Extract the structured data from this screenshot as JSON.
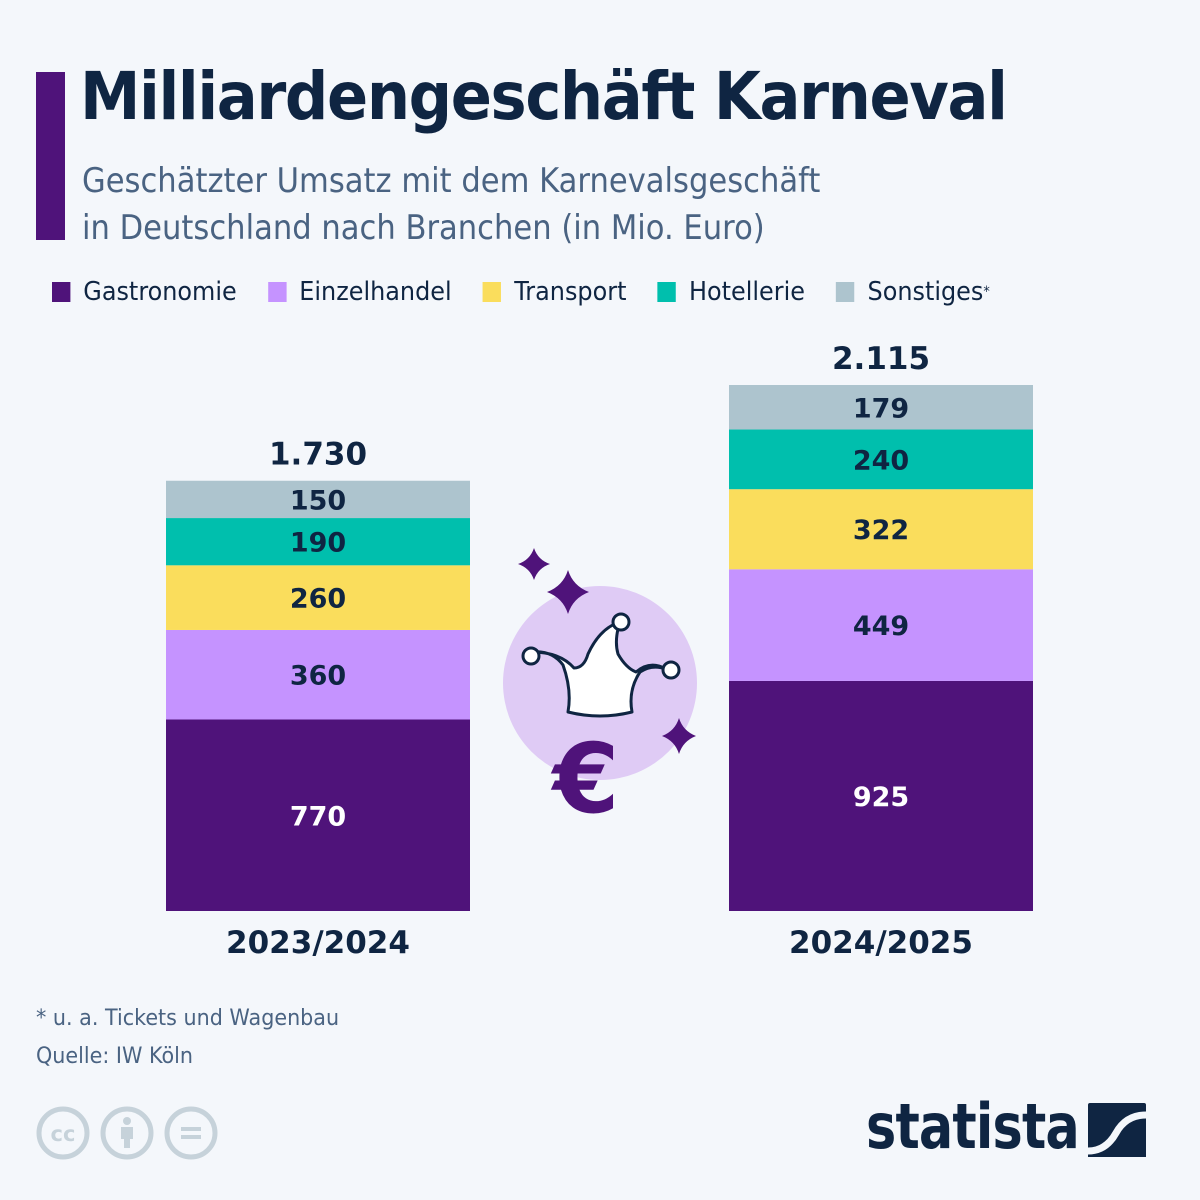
{
  "header": {
    "title": "Milliardengeschäft Karneval",
    "subtitle_line1": "Geschätzter Umsatz mit dem Karnevalsgeschäft",
    "subtitle_line2": "in Deutschland nach Branchen (in Mio. Euro)",
    "accent_color": "#4f137a"
  },
  "legend": [
    {
      "label": "Gastronomie",
      "color": "#4f137a",
      "marker": ""
    },
    {
      "label": "Einzelhandel",
      "color": "#c593ff",
      "marker": ""
    },
    {
      "label": "Transport",
      "color": "#fadd5c",
      "marker": ""
    },
    {
      "label": "Hotellerie",
      "color": "#00bfad",
      "marker": ""
    },
    {
      "label": "Sonstiges",
      "color": "#adc4ce",
      "marker": "*"
    }
  ],
  "chart_data": {
    "type": "bar",
    "stacked": true,
    "title": "Milliardengeschäft Karneval",
    "subtitle": "Geschätzter Umsatz mit dem Karnevalsgeschäft in Deutschland nach Branchen (in Mio. Euro)",
    "xlabel": "",
    "ylabel": "",
    "unit": "Mio. Euro",
    "categories": [
      "2023/2024",
      "2024/2025"
    ],
    "series": [
      {
        "name": "Gastronomie",
        "color": "#4f137a",
        "label_color": "#ffffff",
        "values": [
          770,
          925
        ]
      },
      {
        "name": "Einzelhandel",
        "color": "#c593ff",
        "label_color": "#0f2542",
        "values": [
          360,
          449
        ]
      },
      {
        "name": "Transport",
        "color": "#fadd5c",
        "label_color": "#0f2542",
        "values": [
          260,
          322
        ]
      },
      {
        "name": "Hotellerie",
        "color": "#00bfad",
        "label_color": "#0f2542",
        "values": [
          190,
          240
        ]
      },
      {
        "name": "Sonstiges*",
        "color": "#adc4ce",
        "label_color": "#0f2542",
        "values": [
          150,
          179
        ]
      }
    ],
    "totals": [
      1730,
      2115
    ],
    "totals_labels": [
      "1.730",
      "2.115"
    ],
    "ylim": [
      0,
      2115
    ],
    "grid": false,
    "legend_position": "top"
  },
  "illustration": {
    "icon": "jester-hat-euro-icon",
    "circle_color": "#dfcbf5",
    "accent_color": "#4f137a"
  },
  "footer": {
    "note": "* u. a. Tickets und Wagenbau",
    "source": "Quelle: IW Köln",
    "license_icons": [
      "cc-icon",
      "attribution-icon",
      "no-derivatives-icon"
    ],
    "brand": "statista"
  }
}
